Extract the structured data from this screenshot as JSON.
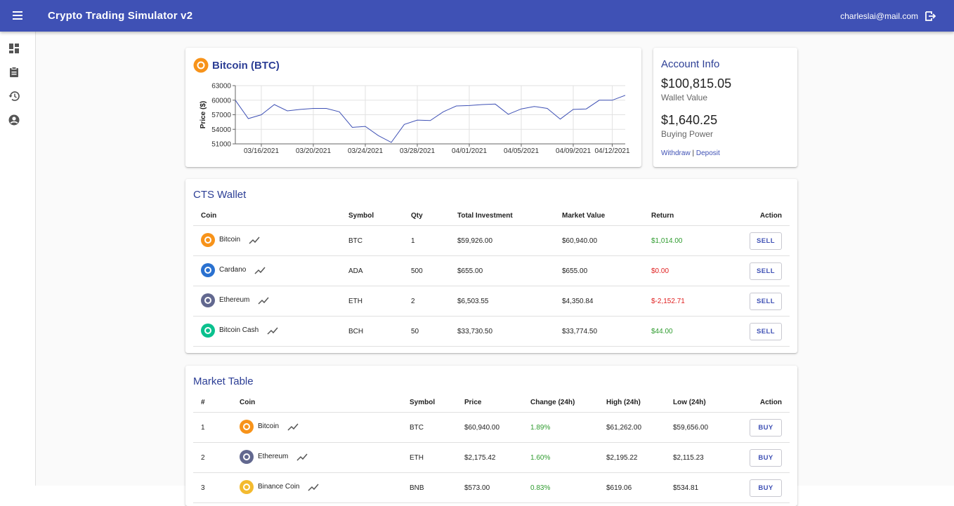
{
  "header": {
    "title": "Crypto Trading Simulator v2",
    "email": "charleslai@mail.com"
  },
  "chart_data": {
    "type": "line",
    "title": "Bitcoin (BTC)",
    "y_label": "Price ($)",
    "x": [
      "03/14/2021",
      "03/15/2021",
      "03/16/2021",
      "03/17/2021",
      "03/18/2021",
      "03/19/2021",
      "03/20/2021",
      "03/21/2021",
      "03/22/2021",
      "03/23/2021",
      "03/24/2021",
      "03/25/2021",
      "03/26/2021",
      "03/27/2021",
      "03/28/2021",
      "03/29/2021",
      "03/30/2021",
      "03/31/2021",
      "04/01/2021",
      "04/02/2021",
      "04/03/2021",
      "04/04/2021",
      "04/05/2021",
      "04/06/2021",
      "04/07/2021",
      "04/08/2021",
      "04/09/2021",
      "04/10/2021",
      "04/11/2021",
      "04/12/2021",
      "04/13/2021"
    ],
    "series": [
      {
        "color": "#3f51b5",
        "values": [
          60000,
          56200,
          57000,
          59100,
          57800,
          58100,
          58300,
          58300,
          57600,
          54400,
          54600,
          52700,
          51300,
          55000,
          55900,
          55800,
          57600,
          58800,
          58900,
          59100,
          59200,
          57100,
          58200,
          58700,
          58300,
          56100,
          58100,
          58200,
          60000,
          60000,
          61000
        ]
      }
    ],
    "ylim": [
      51000,
      63000
    ],
    "yticks": [
      51000,
      54000,
      57000,
      60000,
      63000
    ],
    "xticks": [
      "03/16/2021",
      "03/20/2021",
      "03/24/2021",
      "03/28/2021",
      "04/01/2021",
      "04/05/2021",
      "04/09/2021",
      "04/12/2021"
    ],
    "grid": true
  },
  "account": {
    "title": "Account Info",
    "wallet_value": "$100,815.05",
    "wallet_label": "Wallet Value",
    "buying_power": "$1,640.25",
    "buying_label": "Buying Power",
    "withdraw": "Withdraw",
    "separator": "|",
    "deposit": "Deposit"
  },
  "wallet": {
    "title": "CTS Wallet",
    "columns": [
      "Coin",
      "Symbol",
      "Qty",
      "Total Investment",
      "Market Value",
      "Return",
      "Action"
    ],
    "action_label": "SELL",
    "rows": [
      {
        "coin": "Bitcoin",
        "symbol": "BTC",
        "qty": "1",
        "investment": "$59,926.00",
        "market_value": "$60,940.00",
        "return": "$1,014.00",
        "return_color": "#2e9b2e",
        "icon_color": "#f7931a"
      },
      {
        "coin": "Cardano",
        "symbol": "ADA",
        "qty": "500",
        "investment": "$655.00",
        "market_value": "$655.00",
        "return": "$0.00",
        "return_color": "#e02020",
        "icon_color": "#2a71d0"
      },
      {
        "coin": "Ethereum",
        "symbol": "ETH",
        "qty": "2",
        "investment": "$6,503.55",
        "market_value": "$4,350.84",
        "return": "$-2,152.71",
        "return_color": "#e02020",
        "icon_color": "#62688f"
      },
      {
        "coin": "Bitcoin Cash",
        "symbol": "BCH",
        "qty": "50",
        "investment": "$33,730.50",
        "market_value": "$33,774.50",
        "return": "$44.00",
        "return_color": "#2e9b2e",
        "icon_color": "#0ac18e"
      }
    ]
  },
  "market": {
    "title": "Market Table",
    "columns": [
      "#",
      "Coin",
      "Symbol",
      "Price",
      "Change (24h)",
      "High (24h)",
      "Low (24h)",
      "Action"
    ],
    "action_label": "BUY",
    "rows": [
      {
        "rank": "1",
        "coin": "Bitcoin",
        "symbol": "BTC",
        "price": "$60,940.00",
        "change": "1.89%",
        "change_color": "#2e9b2e",
        "high": "$61,262.00",
        "low": "$59,656.00",
        "icon_color": "#f7931a"
      },
      {
        "rank": "2",
        "coin": "Ethereum",
        "symbol": "ETH",
        "price": "$2,175.42",
        "change": "1.60%",
        "change_color": "#2e9b2e",
        "high": "$2,195.22",
        "low": "$2,115.23",
        "icon_color": "#62688f"
      },
      {
        "rank": "3",
        "coin": "Binance Coin",
        "symbol": "BNB",
        "price": "$573.00",
        "change": "0.83%",
        "change_color": "#2e9b2e",
        "high": "$619.06",
        "low": "$534.81",
        "icon_color": "#f3ba2f"
      }
    ]
  }
}
